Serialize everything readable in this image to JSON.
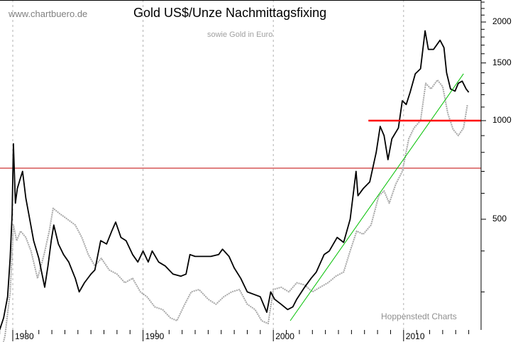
{
  "header": {
    "site": "www.chartbuero.de",
    "credit": "Hoppenstedt Charts"
  },
  "chart_data": {
    "type": "line",
    "title": "Gold US$/Unze Nachmittagsfixing",
    "subtitle": "sowie Gold in Euro",
    "y_scale": "log",
    "ylim": [
      230,
      2330
    ],
    "xlim": [
      1979.0,
      2016.0
    ],
    "y_ticks": [
      500,
      1000,
      1500,
      2000
    ],
    "y_tick_labels": [
      "500",
      "1000",
      "1500",
      "2000"
    ],
    "x_ticks": [
      1980,
      1990,
      2000,
      2010
    ],
    "x_tick_labels": [
      "1980",
      "1990",
      "2000",
      "2010"
    ],
    "grid": "vertical dashed at decades",
    "colors": {
      "usd": "#000000",
      "eur": "#a8a8a8",
      "trend": "#00c000",
      "level": "#ff0000",
      "hline": "#c00000"
    },
    "series": [
      {
        "key": "usd",
        "x": [
          1979.0,
          1979.3,
          1979.6,
          1979.8,
          1979.95,
          1980.05,
          1980.2,
          1980.35,
          1980.55,
          1980.75,
          1981.0,
          1981.3,
          1981.6,
          1982.0,
          1982.45,
          1982.7,
          1982.95,
          1983.15,
          1983.5,
          1983.9,
          1984.3,
          1984.8,
          1985.1,
          1985.5,
          1986.0,
          1986.3,
          1986.75,
          1987.2,
          1987.6,
          1987.9,
          1988.3,
          1988.7,
          1989.2,
          1989.6,
          1990.0,
          1990.4,
          1990.7,
          1991.2,
          1991.7,
          1992.3,
          1992.9,
          1993.3,
          1993.6,
          1994.0,
          1994.6,
          1995.2,
          1995.8,
          1996.1,
          1996.6,
          1997.0,
          1997.5,
          1998.0,
          1998.5,
          1999.0,
          1999.5,
          1999.8,
          2000.1,
          2000.6,
          2001.1,
          2001.5,
          2001.8,
          2002.4,
          2002.9,
          2003.3,
          2003.9,
          2004.3,
          2004.9,
          2005.4,
          2005.9,
          2006.35,
          2006.5,
          2006.9,
          2007.4,
          2007.9,
          2008.2,
          2008.5,
          2008.8,
          2009.1,
          2009.6,
          2009.9,
          2010.2,
          2010.5,
          2010.9,
          2011.3,
          2011.65,
          2011.9,
          2012.3,
          2012.8,
          2013.1,
          2013.3,
          2013.6,
          2013.95,
          2014.2,
          2014.5,
          2014.8,
          2015.0
        ],
        "values": [
          230,
          250,
          290,
          380,
          520,
          850,
          560,
          620,
          660,
          700,
          580,
          500,
          430,
          380,
          310,
          360,
          430,
          480,
          420,
          390,
          370,
          330,
          300,
          320,
          340,
          350,
          430,
          420,
          460,
          490,
          440,
          430,
          390,
          370,
          400,
          370,
          400,
          370,
          360,
          340,
          335,
          340,
          390,
          385,
          385,
          385,
          390,
          405,
          385,
          355,
          330,
          300,
          295,
          290,
          260,
          300,
          285,
          275,
          265,
          270,
          285,
          310,
          330,
          345,
          390,
          400,
          440,
          425,
          500,
          700,
          590,
          620,
          650,
          800,
          960,
          900,
          760,
          880,
          950,
          1150,
          1120,
          1220,
          1390,
          1440,
          1880,
          1650,
          1650,
          1760,
          1670,
          1400,
          1250,
          1230,
          1300,
          1320,
          1250,
          1220
        ]
      },
      {
        "key": "eur",
        "x": [
          1979.0,
          1979.4,
          1979.8,
          1980.05,
          1980.3,
          1980.6,
          1981.0,
          1981.4,
          1981.9,
          1982.4,
          1982.8,
          1983.1,
          1983.6,
          1984.2,
          1984.8,
          1985.3,
          1985.8,
          1986.3,
          1986.8,
          1987.4,
          1988.0,
          1988.6,
          1989.2,
          1989.8,
          1990.3,
          1990.9,
          1991.5,
          1992.1,
          1992.6,
          1993.2,
          1993.7,
          1994.3,
          1995.0,
          1995.6,
          1996.2,
          1996.8,
          1997.4,
          1998.0,
          1998.6,
          1999.1,
          1999.6,
          2000.0,
          2000.6,
          2001.2,
          2001.8,
          2002.4,
          2003.0,
          2003.6,
          2004.2,
          2004.8,
          2005.4,
          2005.9,
          2006.4,
          2006.9,
          2007.5,
          2008.1,
          2008.5,
          2008.9,
          2009.4,
          2009.9,
          2010.4,
          2010.8,
          2011.3,
          2011.7,
          2012.1,
          2012.6,
          2013.0,
          2013.4,
          2013.8,
          2014.2,
          2014.6,
          2014.9
        ],
        "values": [
          190,
          220,
          300,
          480,
          430,
          460,
          440,
          400,
          330,
          390,
          460,
          540,
          520,
          500,
          480,
          440,
          390,
          360,
          380,
          350,
          340,
          320,
          330,
          300,
          290,
          270,
          265,
          250,
          245,
          275,
          300,
          305,
          285,
          275,
          290,
          300,
          305,
          275,
          265,
          245,
          240,
          305,
          310,
          300,
          320,
          315,
          300,
          310,
          320,
          335,
          345,
          400,
          460,
          450,
          480,
          590,
          610,
          560,
          640,
          700,
          880,
          950,
          1000,
          1300,
          1250,
          1330,
          1270,
          1050,
          940,
          900,
          950,
          1120
        ]
      }
    ],
    "trendline": {
      "from": [
        2001.3,
        245
      ],
      "to": [
        2014.6,
        1390
      ]
    },
    "level_line": {
      "value": 1000,
      "from_x": 2007.3
    },
    "horizontal_line": {
      "value": 716
    }
  }
}
